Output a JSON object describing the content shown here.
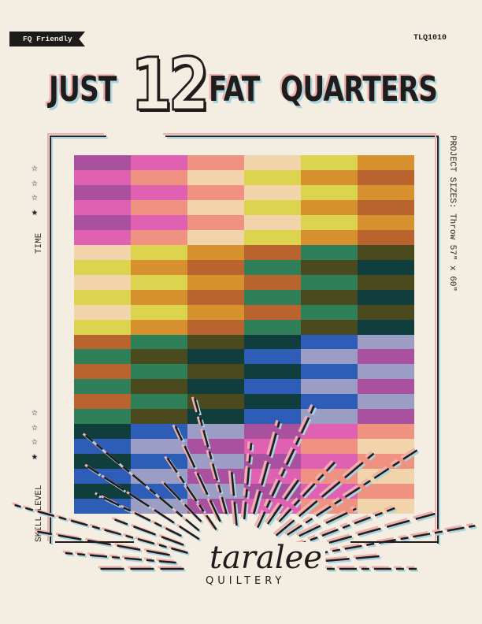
{
  "badge": "FQ Friendly",
  "pattern_code": "TLQ1010",
  "title": {
    "just": "JUST",
    "number": "12",
    "fat": "FAT",
    "quarters": "QUARTERS"
  },
  "time": {
    "label": "TIME",
    "rating": 1,
    "max": 4
  },
  "skill": {
    "label": "SKILL LEVEL",
    "rating": 1,
    "max": 4
  },
  "project_sizes": "PROJECT SIZES:  Throw 57\" x 60\"",
  "logo": {
    "script": "taralee",
    "word": "QUILTERY"
  },
  "quilt": {
    "palette": {
      "M": "#a9509e",
      "P": "#e061b1",
      "S": "#ef9282",
      "C": "#f2d4ab",
      "Y": "#dcd44e",
      "O": "#d8912f",
      "R": "#b9642e",
      "G": "#2f8059",
      "B": "#4b4a1f",
      "T": "#0f3e3c",
      "U": "#2e5db7",
      "L": "#9b9dc5"
    },
    "rows": [
      "MPSCYO",
      "PSCYOR",
      "MPSCYO",
      "PSCYOR",
      "MPSCYO",
      "PSCYOR",
      "CYORGB",
      "YORGBT",
      "CYORGB",
      "YORGBT",
      "CYORGB",
      "YORGBT",
      "RGBTUL",
      "GBTULM",
      "RGBTUL",
      "GBTULM",
      "RGBTUL",
      "GBTULM",
      "TULMPS",
      "ULMPSC",
      "TULMPS",
      "ULMPSC",
      "TULMPS",
      "ULMPSC"
    ]
  }
}
